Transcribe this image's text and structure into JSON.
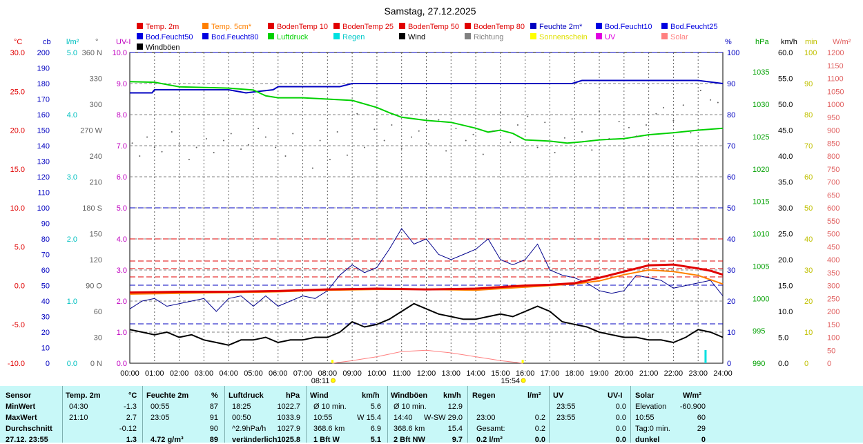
{
  "chart_data": {
    "type": "line",
    "title": "Samstag, 27.12.2025",
    "legend": [
      {
        "name": "Temp. 2m",
        "color": "#e00000"
      },
      {
        "name": "Temp. 5cm*",
        "color": "#ff8000"
      },
      {
        "name": "BodenTemp 10",
        "color": "#e00000"
      },
      {
        "name": "BodenTemp 25",
        "color": "#e00000"
      },
      {
        "name": "BodenTemp 50",
        "color": "#e00000"
      },
      {
        "name": "BodenTemp 80",
        "color": "#e00000"
      },
      {
        "name": "Feuchte 2m*",
        "color": "#0000c0"
      },
      {
        "name": "Bod.Feucht10",
        "color": "#0000e0"
      },
      {
        "name": "Bod.Feucht25",
        "color": "#0000e0"
      },
      {
        "name": "Bod.Feucht50",
        "color": "#0000e0"
      },
      {
        "name": "Bod.Feucht80",
        "color": "#0000e0"
      },
      {
        "name": "Luftdruck",
        "color": "#00d000"
      },
      {
        "name": "Regen",
        "color": "#00e0e0"
      },
      {
        "name": "Wind",
        "color": "#000000"
      },
      {
        "name": "Richtung",
        "color": "#808080"
      },
      {
        "name": "Sonnenschein",
        "color": "#ffff00"
      },
      {
        "name": "UV",
        "color": "#e000e0"
      },
      {
        "name": "Solar",
        "color": "#ff8080"
      },
      {
        "name": "Windböen",
        "color": "#000000"
      }
    ],
    "x_labels": [
      "00:00",
      "01:00",
      "02:00",
      "03:00",
      "04:00",
      "05:00",
      "06:00",
      "07:00",
      "08:00",
      "09:00",
      "10:00",
      "11:00",
      "12:00",
      "13:00",
      "14:00",
      "15:00",
      "16:00",
      "17:00",
      "18:00",
      "19:00",
      "20:00",
      "21:00",
      "22:00",
      "23:00",
      "24:00"
    ],
    "sun_times": [
      "08:11",
      "15:54"
    ],
    "axes": {
      "temp": {
        "unit": "°C",
        "min": -10,
        "max": 30,
        "ticks": [
          "30.0",
          "25.0",
          "20.0",
          "15.0",
          "10.0",
          "5.0",
          "0.0",
          "-5.0",
          "-10.0"
        ],
        "color": "#e00000"
      },
      "cb": {
        "unit": "cb",
        "min": 0,
        "max": 200,
        "ticks": [
          "200",
          "190",
          "180",
          "170",
          "160",
          "150",
          "140",
          "130",
          "120",
          "110",
          "100",
          "90",
          "80",
          "70",
          "60",
          "50",
          "40",
          "30",
          "20",
          "10",
          "0"
        ],
        "color": "#0000c0"
      },
      "rain": {
        "unit": "l/m²",
        "min": 0,
        "max": 5,
        "ticks": [
          "5.0",
          "4.0",
          "3.0",
          "2.0",
          "1.0",
          "0.0"
        ],
        "color": "#00c0c0"
      },
      "dir": {
        "unit": "°",
        "ticks": [
          "360 N",
          "330",
          "300",
          "270 W",
          "240",
          "210",
          "180 S",
          "150",
          "120",
          "90 O",
          "60",
          "30",
          "0 N"
        ],
        "color": "#606060"
      },
      "uv": {
        "unit": "UV-I",
        "min": 0,
        "max": 10,
        "ticks": [
          "10.0",
          "9.0",
          "8.0",
          "7.0",
          "6.0",
          "5.0",
          "4.0",
          "3.0",
          "2.0",
          "1.0",
          "0.0"
        ],
        "color": "#c000c0"
      },
      "hum": {
        "unit": "%",
        "min": 0,
        "max": 100,
        "ticks": [
          "100",
          "90",
          "80",
          "70",
          "60",
          "50",
          "40",
          "30",
          "20",
          "10",
          "0"
        ],
        "color": "#0000c0"
      },
      "press": {
        "unit": "hPa",
        "min": 990,
        "max": 1038,
        "ticks": [
          "1035",
          "1030",
          "1025",
          "1020",
          "1015",
          "1010",
          "1005",
          "1000",
          "995",
          "990"
        ],
        "color": "#00a000"
      },
      "wind": {
        "unit": "km/h",
        "min": 0,
        "max": 60,
        "ticks": [
          "60.0",
          "55.0",
          "50.0",
          "45.0",
          "40.0",
          "35.0",
          "30.0",
          "25.0",
          "20.0",
          "15.0",
          "10.0",
          "5.0",
          "0.0"
        ],
        "color": "#000000"
      },
      "min": {
        "unit": "min",
        "min": 0,
        "max": 100,
        "ticks": [
          "100",
          "90",
          "80",
          "70",
          "60",
          "50",
          "40",
          "30",
          "20",
          "10",
          "0"
        ],
        "color": "#c0c000"
      },
      "solar": {
        "unit": "W/m²",
        "min": 0,
        "max": 1200,
        "ticks": [
          "1200",
          "1150",
          "1100",
          "1050",
          "1000",
          "950",
          "900",
          "850",
          "800",
          "750",
          "700",
          "650",
          "600",
          "550",
          "500",
          "450",
          "400",
          "350",
          "300",
          "250",
          "200",
          "150",
          "100",
          "50",
          "0"
        ],
        "color": "#e06060"
      }
    },
    "series": {
      "temp2m": {
        "axis": "temp",
        "color": "#e00000",
        "x": [
          0,
          2,
          4,
          6,
          8,
          10,
          12,
          14,
          15,
          16,
          17,
          18,
          19,
          20,
          21,
          22,
          23,
          23.5,
          24
        ],
        "y": [
          -0.9,
          -0.8,
          -0.8,
          -0.7,
          -0.5,
          -0.4,
          -0.5,
          -0.4,
          -0.2,
          0.0,
          0.1,
          0.3,
          1.0,
          1.8,
          2.6,
          2.7,
          2.2,
          1.9,
          1.4
        ]
      },
      "temp5cm": {
        "axis": "temp",
        "color": "#ff8000",
        "x": [
          0,
          2,
          4,
          6,
          8,
          10,
          12,
          14,
          15,
          16,
          17,
          18,
          19,
          20,
          21,
          22,
          23,
          24
        ],
        "y": [
          -1.1,
          -1.0,
          -0.9,
          -0.8,
          -0.6,
          -0.5,
          -0.5,
          -0.6,
          -0.4,
          -0.2,
          0.0,
          0.2,
          0.6,
          1.4,
          2.0,
          1.8,
          1.3,
          0.2
        ]
      },
      "humidity": {
        "axis": "hum",
        "color": "#0000c0",
        "x": [
          0,
          0.9,
          1,
          4,
          4.7,
          5.8,
          6,
          8.5,
          9.0,
          12,
          17.9,
          18.3,
          22.0,
          23.0,
          24
        ],
        "y": [
          87,
          87,
          88,
          88,
          87,
          88,
          89,
          89,
          90,
          90,
          90,
          91,
          91,
          91,
          90
        ]
      },
      "pressure": {
        "axis": "press",
        "color": "#00d000",
        "x": [
          0,
          1,
          2,
          4,
          5,
          5.5,
          6,
          7,
          8,
          9,
          10,
          10.5,
          11,
          12,
          13,
          14,
          14.5,
          15,
          15.5,
          16,
          17,
          17.7,
          18.3,
          19,
          20,
          21,
          22,
          23,
          24
        ],
        "y": [
          1033.5,
          1033.4,
          1032.7,
          1032.5,
          1032.2,
          1031.3,
          1031.0,
          1031.0,
          1030.8,
          1030.6,
          1029.5,
          1028.7,
          1028.0,
          1027.5,
          1027.2,
          1026.3,
          1025.7,
          1026.0,
          1025.5,
          1024.5,
          1024.3,
          1024.0,
          1024.2,
          1024.5,
          1024.7,
          1025.3,
          1025.6,
          1026.0,
          1026.3
        ]
      },
      "wind": {
        "axis": "wind",
        "color": "#000000",
        "x": [
          0,
          0.5,
          1,
          1.5,
          2,
          2.5,
          3,
          3.5,
          4,
          4.5,
          5,
          5.5,
          6,
          6.5,
          7,
          7.5,
          8,
          8.5,
          9,
          9.5,
          10,
          10.5,
          11,
          11.5,
          12,
          12.5,
          13,
          13.5,
          14,
          14.5,
          15,
          15.5,
          16,
          16.5,
          17,
          17.5,
          18,
          18.5,
          19,
          19.5,
          20,
          20.5,
          21,
          21.5,
          22,
          22.5,
          23,
          23.5,
          24
        ],
        "y": [
          6.5,
          6.0,
          5.5,
          6.0,
          5.0,
          5.5,
          4.5,
          4.0,
          3.5,
          4.5,
          4.5,
          5.0,
          4.0,
          4.5,
          4.5,
          5.0,
          5.0,
          6.0,
          8.0,
          7.0,
          7.5,
          8.5,
          10.0,
          11.5,
          10.5,
          9.5,
          9.0,
          8.5,
          8.5,
          9.0,
          9.5,
          9.0,
          10.0,
          11.0,
          10.0,
          8.0,
          7.5,
          7.0,
          6.0,
          5.5,
          5.0,
          5.0,
          4.5,
          4.5,
          4.0,
          5.0,
          6.5,
          6.0,
          5.0
        ]
      },
      "gusts": {
        "axis": "wind",
        "color": "#00008c",
        "x": [
          0,
          0.5,
          1,
          1.5,
          2,
          2.5,
          3,
          3.5,
          4,
          4.5,
          5,
          5.5,
          6,
          6.5,
          7,
          7.5,
          8,
          8.5,
          9,
          9.5,
          10,
          10.5,
          11,
          11.5,
          12,
          12.5,
          13,
          13.5,
          14,
          14.5,
          15,
          15.5,
          16,
          16.5,
          17,
          17.5,
          18,
          18.5,
          19,
          19.5,
          20,
          20.5,
          21,
          21.5,
          22,
          22.5,
          23,
          23.5,
          24
        ],
        "y": [
          10.5,
          12.0,
          12.5,
          11.0,
          11.5,
          12.0,
          12.5,
          10.0,
          12.5,
          13.0,
          11.0,
          13.0,
          11.0,
          12.0,
          13.0,
          12.5,
          14.0,
          17.0,
          19.0,
          17.5,
          18.5,
          22.0,
          26.0,
          23.0,
          24.0,
          21.0,
          20.0,
          21.0,
          22.0,
          24.0,
          20.0,
          19.0,
          20.0,
          23.0,
          18.0,
          17.0,
          16.5,
          15.5,
          14.0,
          13.5,
          14.0,
          17.0,
          16.5,
          16.0,
          14.5,
          15.0,
          15.5,
          16.0,
          13.0
        ]
      },
      "direction_samples": {
        "axis": "dir",
        "color": "#606060",
        "x": [
          0.1,
          0.4,
          0.7,
          1.0,
          1.3,
          1.7,
          2.0,
          2.4,
          2.7,
          3.1,
          3.4,
          3.8,
          4.1,
          4.5,
          4.8,
          5.2,
          5.5,
          5.9,
          6.3,
          6.6,
          7.0,
          7.4,
          7.7,
          8.1,
          8.4,
          8.8,
          9.2,
          9.5,
          9.9,
          10.3,
          10.6,
          11.0,
          11.4,
          11.7,
          12.1,
          12.5,
          12.8,
          13.2,
          13.6,
          13.9,
          14.3,
          14.7,
          15.0,
          15.4,
          15.7,
          16.1,
          16.5,
          16.8,
          17.2,
          17.6,
          17.9,
          18.3,
          18.7,
          19.0,
          19.4,
          19.8,
          20.2,
          20.5,
          20.9,
          21.3,
          21.6,
          22.0,
          22.4,
          22.7,
          23.1,
          23.5,
          23.8
        ],
        "y": [
          255,
          240,
          262,
          250,
          245,
          268,
          254,
          236,
          250,
          260,
          244,
          258,
          266,
          248,
          253,
          272,
          262,
          250,
          240,
          266,
          247,
          226,
          258,
          236,
          268,
          241,
          289,
          250,
          271,
          258,
          276,
          249,
          262,
          269,
          254,
          282,
          246,
          272,
          258,
          265,
          242,
          269,
          290,
          256,
          276,
          286,
          250,
          279,
          244,
          261,
          283,
          268,
          247,
          292,
          260,
          280,
          273,
          263,
          276,
          289,
          296,
          281,
          299,
          267,
          316,
          305,
          302
        ]
      },
      "solar": {
        "axis": "solar",
        "color": "#ff8080",
        "x": [
          8.2,
          9,
          10,
          11,
          12,
          13,
          14,
          15,
          15.9
        ],
        "y": [
          0,
          10,
          25,
          45,
          50,
          40,
          25,
          10,
          0
        ]
      }
    },
    "bottom_markers": [
      {
        "x": 8.2,
        "color": "#ffff00"
      },
      {
        "x": 15.9,
        "color": "#ffff00"
      },
      {
        "x": 23.3,
        "color": "#00e0e0",
        "label": "Regen"
      }
    ],
    "grid": true
  },
  "table": {
    "headers": {
      "sensor": "Sensor",
      "temp": "Temp. 2m",
      "temp_unit": "°C",
      "hum": "Feuchte 2m",
      "hum_unit": "%",
      "press": "Luftdruck",
      "press_unit": "hPa",
      "wind": "Wind",
      "wind_unit": "km/h",
      "gust": "Windböen",
      "gust_unit": "km/h",
      "rain": "Regen",
      "rain_unit": "l/m²",
      "uv": "UV",
      "uv_unit": "UV-I",
      "solar": "Solar",
      "solar_unit": "W/m²"
    },
    "rows": [
      {
        "label": "MinWert",
        "t_time": "04:30",
        "t_val": "-1.3",
        "h_time": "00:55",
        "h_val": "87",
        "p_time": "18:25",
        "p_val": "1022.7",
        "w_label": "Ø 10 min.",
        "w_val": "5.6",
        "g_label": "Ø 10 min.",
        "g_val": "12.9",
        "r_time": "",
        "r_val": "",
        "u_time": "23:55",
        "u_val": "0.0",
        "s_label": "Elevation",
        "s_val": "-60.900"
      },
      {
        "label": "MaxWert",
        "t_time": "21:10",
        "t_val": "2.7",
        "h_time": "23:05",
        "h_val": "91",
        "p_time": "00:50",
        "p_val": "1033.9",
        "w_label": "10:55",
        "w_val": "W 15.4",
        "g_label": "14:40",
        "g_val": "W-SW 29.0",
        "r_time": "23:00",
        "r_val": "0.2",
        "u_time": "23:55",
        "u_val": "0.0",
        "s_label": "10:55",
        "s_val": "60"
      },
      {
        "label": "Durchschnitt",
        "t_time": "",
        "t_val": "-0.12",
        "h_time": "",
        "h_val": "90",
        "p_time": "^2.9hPa/h",
        "p_val": "1027.9",
        "w_label": "368.6 km",
        "w_val": "6.9",
        "g_label": "368.6 km",
        "g_val": "15.4",
        "r_time": "Gesamt:",
        "r_val": "0.2",
        "u_time": "",
        "u_val": "0.0",
        "s_label": "Tag:0 min.",
        "s_val": "29"
      },
      {
        "label": "27.12. 23:55",
        "t_time": "",
        "t_val": "1.3",
        "h_time": "4.72 g/m³",
        "h_val": "89",
        "p_time": "veränderlich",
        "p_val": "1025.8",
        "w_label": "1 Bft W",
        "w_val": "5.1",
        "g_label": "2 Bft NW",
        "g_val": "9.7",
        "r_time": "0.2 l/m²",
        "r_val": "0.0",
        "u_time": "",
        "u_val": "0.0",
        "s_label": "dunkel",
        "s_val": "0"
      }
    ]
  }
}
